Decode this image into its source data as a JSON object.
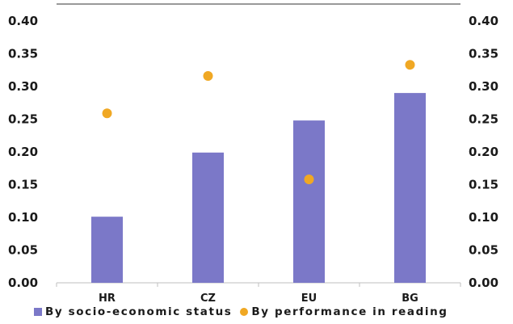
{
  "chart_data": {
    "type": "bar",
    "categories": [
      "HR",
      "CZ",
      "EU",
      "BG"
    ],
    "series": [
      {
        "name": "By socio-economic status",
        "kind": "bar",
        "axis": "left",
        "color": "#7b78c8",
        "values": [
          0.101,
          0.199,
          0.248,
          0.29
        ]
      },
      {
        "name": "By performance in reading",
        "kind": "scatter",
        "axis": "right",
        "color": "#f0a824",
        "values": [
          0.259,
          0.316,
          0.158,
          0.333
        ]
      }
    ],
    "y_ticks": [
      "0.00",
      "0.05",
      "0.10",
      "0.15",
      "0.20",
      "0.25",
      "0.30",
      "0.35",
      "0.40"
    ],
    "ylim": [
      0,
      0.4
    ],
    "y2lim": [
      0,
      0.4
    ],
    "grid": false,
    "legend_position": "bottom"
  }
}
